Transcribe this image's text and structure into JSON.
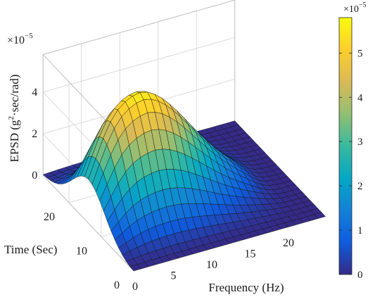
{
  "chart_data": {
    "type": "surface",
    "title": "",
    "xlabel": "Frequency (Hz)",
    "ylabel": "Time (Sec)",
    "zlabel_main": "EPSD (g",
    "zlabel_sup": "2",
    "zlabel_rest": "·sec/rad)",
    "z_exponent_base": "×10",
    "z_exponent_power": "−5",
    "colorbar_exponent_base": "×10",
    "colorbar_exponent_power": "−5",
    "x_ticks": [
      "0",
      "5",
      "10",
      "15",
      "20"
    ],
    "x_tick_values": [
      0,
      5,
      10,
      15,
      20
    ],
    "y_ticks": [
      "0",
      "10",
      "20"
    ],
    "y_tick_values": [
      0,
      10,
      20
    ],
    "z_ticks": [
      "0",
      "2",
      "4"
    ],
    "z_tick_values": [
      0,
      2,
      4
    ],
    "colorbar_ticks": [
      "0",
      "1",
      "2",
      "3",
      "4",
      "5"
    ],
    "colorbar_tick_values": [
      0,
      1,
      2,
      3,
      4,
      5
    ],
    "xlim": [
      0,
      25
    ],
    "ylim": [
      0,
      28
    ],
    "zlim": [
      0,
      5.8
    ],
    "clim": [
      0,
      5.8
    ],
    "colormap": "parula",
    "grid": true,
    "peak": {
      "frequency": 6,
      "time": 14,
      "value": 5.7
    },
    "frequency_decay": 10,
    "time_spread": 7,
    "time_onset": 2,
    "time_onset_width": 0.8,
    "frequency_cutoff": 21,
    "frequency_cutoff_width": 0.8,
    "frequency_onset_width": 1.5
  }
}
